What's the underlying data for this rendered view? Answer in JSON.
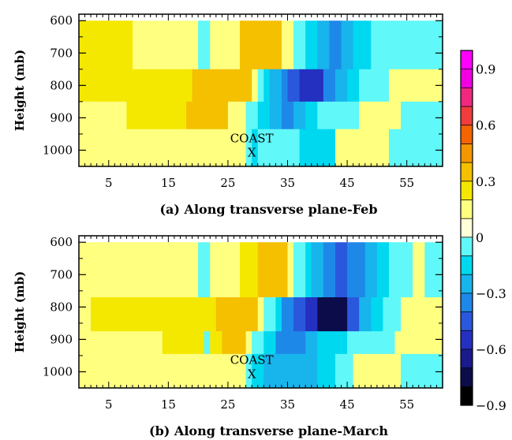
{
  "chart_data": [
    {
      "type": "heatmap",
      "caption": "(a) Along transverse plane-Feb",
      "ylabel": "Height (mb)",
      "xticks": [
        5,
        15,
        25,
        35,
        45,
        55
      ],
      "yticks": [
        600,
        700,
        800,
        900,
        1000
      ],
      "xlim": [
        0,
        61
      ],
      "ylim": [
        1050,
        580
      ],
      "annotation": {
        "line1": "COAST",
        "line2": "X",
        "x": 29,
        "y": 1000
      },
      "rows": [
        {
          "p1": 600,
          "p2": 750,
          "cells": [
            [
              0,
              9,
              0.2
            ],
            [
              9,
              20,
              0.1
            ],
            [
              20,
              22,
              -0.1
            ],
            [
              22,
              27,
              0.1
            ],
            [
              27,
              34,
              0.3
            ],
            [
              34,
              36,
              0.1
            ],
            [
              36,
              38,
              -0.1
            ],
            [
              38,
              40,
              -0.2
            ],
            [
              40,
              42,
              -0.3
            ],
            [
              42,
              44,
              -0.4
            ],
            [
              44,
              46,
              -0.3
            ],
            [
              46,
              49,
              -0.2
            ],
            [
              49,
              61,
              -0.1
            ]
          ]
        },
        {
          "p1": 750,
          "p2": 850,
          "cells": [
            [
              0,
              19,
              0.2
            ],
            [
              19,
              29,
              0.3
            ],
            [
              29,
              30,
              0.1
            ],
            [
              30,
              31,
              -0.1
            ],
            [
              31,
              32,
              -0.2
            ],
            [
              32,
              34,
              -0.3
            ],
            [
              34,
              35,
              -0.4
            ],
            [
              35,
              37,
              -0.5
            ],
            [
              37,
              41,
              -0.6
            ],
            [
              41,
              43,
              -0.4
            ],
            [
              43,
              45,
              -0.3
            ],
            [
              45,
              47,
              -0.2
            ],
            [
              47,
              52,
              -0.1
            ],
            [
              52,
              61,
              0.1
            ]
          ]
        },
        {
          "p1": 850,
          "p2": 935,
          "cells": [
            [
              0,
              8,
              0.1
            ],
            [
              8,
              18,
              0.2
            ],
            [
              18,
              25,
              0.3
            ],
            [
              25,
              28,
              0.1
            ],
            [
              28,
              30,
              -0.1
            ],
            [
              30,
              32,
              -0.2
            ],
            [
              32,
              34,
              -0.3
            ],
            [
              34,
              36,
              -0.4
            ],
            [
              36,
              38,
              -0.3
            ],
            [
              38,
              40,
              -0.2
            ],
            [
              40,
              47,
              -0.1
            ],
            [
              47,
              54,
              0.1
            ],
            [
              54,
              61,
              -0.1
            ]
          ]
        },
        {
          "p1": 935,
          "p2": 1050,
          "cells": [
            [
              0,
              28,
              0.1
            ],
            [
              28,
              29,
              -0.1
            ],
            [
              29,
              30,
              -0.2
            ],
            [
              30,
              37,
              -0.1
            ],
            [
              37,
              43,
              -0.2
            ],
            [
              43,
              52,
              0.1
            ],
            [
              52,
              61,
              -0.1
            ]
          ]
        }
      ]
    },
    {
      "type": "heatmap",
      "caption": "(b) Along transverse plane-March",
      "ylabel": "Height (mb)",
      "xticks": [
        5,
        15,
        25,
        35,
        45,
        55
      ],
      "yticks": [
        600,
        700,
        800,
        900,
        1000
      ],
      "xlim": [
        0,
        61
      ],
      "ylim": [
        1050,
        580
      ],
      "annotation": {
        "line1": "COAST",
        "line2": "X",
        "x": 29,
        "y": 1000
      },
      "rows": [
        {
          "p1": 600,
          "p2": 770,
          "cells": [
            [
              0,
              20,
              0.1
            ],
            [
              20,
              22,
              -0.1
            ],
            [
              22,
              27,
              0.1
            ],
            [
              27,
              30,
              0.2
            ],
            [
              30,
              35,
              0.3
            ],
            [
              35,
              36,
              0.1
            ],
            [
              36,
              38,
              -0.1
            ],
            [
              38,
              39,
              -0.2
            ],
            [
              39,
              41,
              -0.3
            ],
            [
              41,
              43,
              -0.4
            ],
            [
              43,
              45,
              -0.5
            ],
            [
              45,
              48,
              -0.4
            ],
            [
              48,
              50,
              -0.3
            ],
            [
              50,
              52,
              -0.2
            ],
            [
              52,
              56,
              -0.1
            ],
            [
              56,
              58,
              0.1
            ],
            [
              58,
              61,
              -0.1
            ]
          ]
        },
        {
          "p1": 770,
          "p2": 875,
          "cells": [
            [
              0,
              2,
              0.1
            ],
            [
              2,
              23,
              0.2
            ],
            [
              23,
              30,
              0.3
            ],
            [
              30,
              31,
              0.1
            ],
            [
              31,
              33,
              -0.1
            ],
            [
              33,
              34,
              -0.2
            ],
            [
              34,
              36,
              -0.4
            ],
            [
              36,
              38,
              -0.5
            ],
            [
              38,
              40,
              -0.6
            ],
            [
              40,
              45,
              -0.8
            ],
            [
              45,
              47,
              -0.5
            ],
            [
              47,
              49,
              -0.3
            ],
            [
              49,
              51,
              -0.2
            ],
            [
              51,
              54,
              -0.1
            ],
            [
              54,
              61,
              0.1
            ]
          ]
        },
        {
          "p1": 875,
          "p2": 945,
          "cells": [
            [
              0,
              14,
              0.1
            ],
            [
              14,
              21,
              0.2
            ],
            [
              21,
              22,
              -0.1
            ],
            [
              22,
              24,
              0.2
            ],
            [
              24,
              28,
              0.3
            ],
            [
              28,
              29,
              0.1
            ],
            [
              29,
              31,
              -0.1
            ],
            [
              31,
              33,
              -0.2
            ],
            [
              33,
              38,
              -0.4
            ],
            [
              38,
              40,
              -0.3
            ],
            [
              40,
              45,
              -0.2
            ],
            [
              45,
              53,
              -0.1
            ],
            [
              53,
              61,
              0.1
            ]
          ]
        },
        {
          "p1": 945,
          "p2": 1050,
          "cells": [
            [
              0,
              28,
              0.1
            ],
            [
              28,
              29,
              -0.1
            ],
            [
              29,
              31,
              -0.2
            ],
            [
              31,
              40,
              -0.3
            ],
            [
              40,
              43,
              -0.2
            ],
            [
              43,
              46,
              -0.1
            ],
            [
              46,
              54,
              0.1
            ],
            [
              54,
              61,
              -0.1
            ]
          ]
        }
      ]
    }
  ],
  "colorbar": {
    "labels": [
      {
        "value": 0.9,
        "text": "0.9"
      },
      {
        "value": 0.6,
        "text": "0.6"
      },
      {
        "value": 0.3,
        "text": "0.3"
      },
      {
        "value": 0,
        "text": "0"
      },
      {
        "value": -0.3,
        "text": "−0.3"
      },
      {
        "value": -0.6,
        "text": "−0.6"
      },
      {
        "value": -0.9,
        "text": "−0.9"
      }
    ],
    "colors": [
      "#000000",
      "#0c0c4a",
      "#1a1a8c",
      "#2430c0",
      "#2a58dc",
      "#1e88e8",
      "#18b4ec",
      "#00d8f0",
      "#60f8f8",
      "#ffffd8",
      "#ffff80",
      "#f4e800",
      "#f4c000",
      "#f49600",
      "#f46400",
      "#f03c3c",
      "#f02880",
      "#f000e0",
      "#ff00ff"
    ],
    "range": [
      -0.9,
      1.0
    ]
  }
}
